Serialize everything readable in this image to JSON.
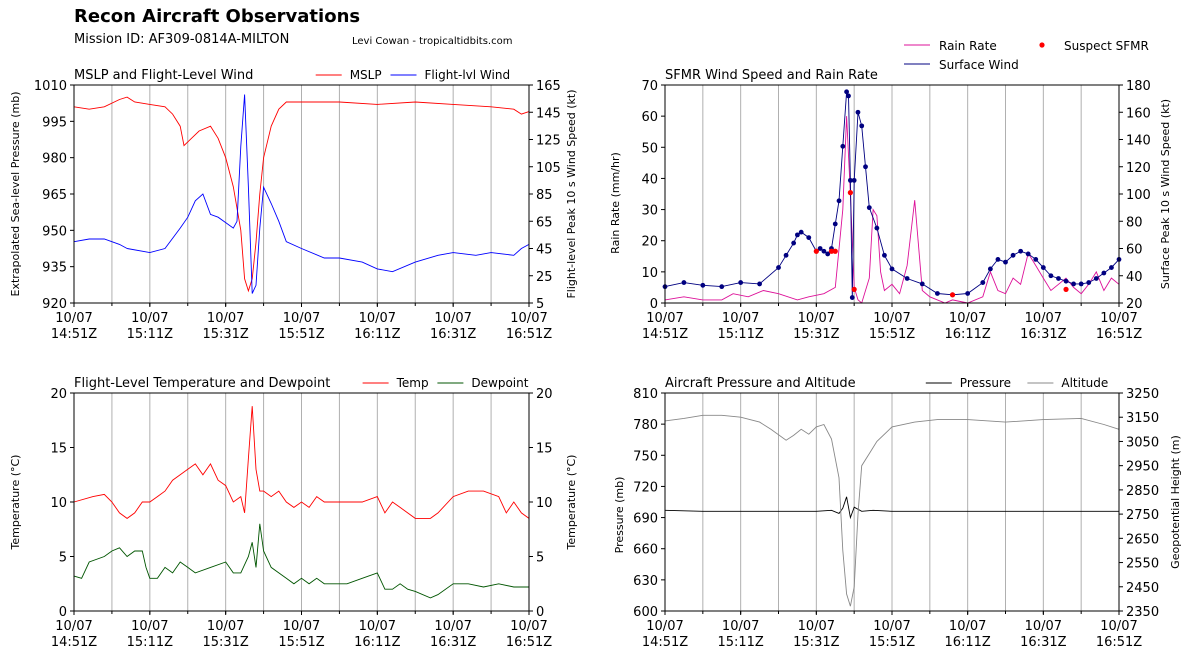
{
  "header": {
    "title": "Recon Aircraft Observations",
    "mission": "Mission ID: AF309-0814A-MILTON",
    "credit": "Levi Cowan - tropicaltidbits.com"
  },
  "x_axis": {
    "ticks": [
      "10/07 14:51Z",
      "10/07 15:11Z",
      "10/07 15:31Z",
      "10/07 15:51Z",
      "10/07 16:11Z",
      "10/07 16:31Z",
      "10/07 16:51Z"
    ],
    "range_minutes": [
      0,
      120
    ]
  },
  "chart_data": [
    {
      "type": "line",
      "title": "MSLP and Flight-Level Wind",
      "ylabel": "Extrapolated Sea-level Pressure (mb)",
      "ylim": [
        920,
        1010
      ],
      "yticks": [
        "920",
        "935",
        "950",
        "965",
        "980",
        "995",
        "1010"
      ],
      "y2label": "Flight-level Peak 10 s Wind Speed (kt)",
      "y2lim": [
        5,
        165
      ],
      "y2ticks": [
        "5",
        "25",
        "45",
        "65",
        "85",
        "105",
        "125",
        "145",
        "165"
      ],
      "legend": "top-right",
      "series": [
        {
          "name": "MSLP",
          "color": "#ff0000",
          "axis": "left",
          "x": [
            0,
            4,
            8,
            12,
            14,
            16,
            20,
            24,
            26,
            28,
            29,
            31,
            33,
            36,
            38,
            40,
            42,
            44,
            45,
            46,
            47,
            48,
            49,
            50,
            52,
            54,
            56,
            60,
            70,
            80,
            90,
            100,
            110,
            116,
            118,
            120
          ],
          "y": [
            1001,
            1000,
            1001,
            1004,
            1005,
            1003,
            1002,
            1001,
            998,
            993,
            985,
            988,
            991,
            993,
            988,
            980,
            968,
            950,
            930,
            925,
            930,
            945,
            965,
            980,
            993,
            1000,
            1003,
            1003,
            1003,
            1002,
            1003,
            1002,
            1001,
            1000,
            998,
            999
          ]
        },
        {
          "name": "Flight-lvl Wind",
          "color": "#0000ff",
          "axis": "right",
          "x": [
            0,
            4,
            8,
            12,
            14,
            20,
            24,
            28,
            30,
            32,
            34,
            36,
            38,
            40,
            42,
            43,
            44,
            45,
            46,
            47,
            48,
            49,
            50,
            52,
            54,
            56,
            60,
            66,
            70,
            76,
            80,
            84,
            90,
            96,
            100,
            106,
            110,
            116,
            118,
            120
          ],
          "y": [
            50,
            52,
            52,
            48,
            45,
            42,
            45,
            60,
            68,
            80,
            85,
            70,
            68,
            64,
            60,
            65,
            120,
            158,
            90,
            12,
            18,
            60,
            90,
            78,
            65,
            50,
            45,
            38,
            38,
            35,
            30,
            28,
            35,
            40,
            42,
            40,
            42,
            40,
            45,
            48
          ]
        }
      ]
    },
    {
      "type": "line",
      "title": "SFMR Wind Speed and Rain Rate",
      "ylabel": "Rain Rate (mm/hr)",
      "ylim": [
        0,
        70
      ],
      "yticks": [
        "0",
        "10",
        "20",
        "30",
        "40",
        "50",
        "60",
        "70"
      ],
      "y2label": "Surface Peak 10 s Wind Speed (kt)",
      "y2lim": [
        20,
        180
      ],
      "y2ticks": [
        "20",
        "40",
        "60",
        "80",
        "100",
        "120",
        "140",
        "160",
        "180"
      ],
      "legend": "above-right",
      "series": [
        {
          "name": "Rain Rate",
          "color": "#dd1199",
          "axis": "left",
          "x": [
            0,
            5,
            10,
            15,
            18,
            22,
            26,
            30,
            35,
            38,
            42,
            45,
            47,
            48,
            49,
            50,
            51,
            52,
            54,
            55,
            56,
            57,
            58,
            60,
            62,
            64,
            66,
            68,
            70,
            72,
            74,
            76,
            80,
            84,
            86,
            88,
            90,
            92,
            94,
            96,
            98,
            100,
            102,
            104,
            106,
            108,
            110,
            112,
            114,
            116,
            118,
            120
          ],
          "y": [
            1,
            2,
            1,
            1,
            3,
            2,
            4,
            3,
            1,
            2,
            3,
            5,
            30,
            60,
            35,
            5,
            1,
            0,
            8,
            30,
            28,
            10,
            4,
            6,
            3,
            12,
            33,
            4,
            2,
            1,
            0,
            1,
            0,
            2,
            10,
            4,
            3,
            8,
            6,
            16,
            12,
            8,
            4,
            6,
            8,
            5,
            3,
            6,
            10,
            4,
            8,
            6
          ]
        },
        {
          "name": "Surface Wind",
          "color": "#000080",
          "axis": "right",
          "x": [
            0,
            5,
            10,
            15,
            20,
            25,
            30,
            32,
            34,
            35,
            36,
            38,
            40,
            41,
            42,
            43,
            44,
            45,
            46,
            47,
            48,
            48.5,
            49,
            49.5,
            50,
            51,
            52,
            53,
            54,
            56,
            58,
            60,
            64,
            68,
            72,
            76,
            80,
            84,
            86,
            88,
            90,
            92,
            94,
            96,
            98,
            100,
            102,
            104,
            106,
            108,
            110,
            112,
            114,
            116,
            118,
            120
          ],
          "y": [
            32,
            35,
            33,
            32,
            35,
            34,
            46,
            55,
            64,
            70,
            72,
            68,
            58,
            60,
            58,
            56,
            60,
            78,
            95,
            135,
            175,
            172,
            110,
            24,
            110,
            160,
            150,
            120,
            90,
            75,
            55,
            45,
            38,
            34,
            27,
            26,
            27,
            35,
            45,
            52,
            50,
            55,
            58,
            56,
            52,
            46,
            40,
            38,
            36,
            34,
            34,
            35,
            38,
            42,
            46,
            52
          ]
        },
        {
          "name": "Suspect SFMR",
          "color": "#ff0000",
          "axis": "right",
          "marker": "dot",
          "x": [
            40,
            44,
            45,
            49,
            50,
            76,
            106
          ],
          "y": [
            58,
            58,
            58,
            101,
            30,
            26,
            30
          ]
        }
      ]
    },
    {
      "type": "line",
      "title": "Flight-Level Temperature and Dewpoint",
      "ylabel": "Temperature ($^\\circ C$)",
      "ylim": [
        0,
        20
      ],
      "yticks": [
        "0",
        "5",
        "10",
        "15",
        "20"
      ],
      "y2label": "Temperature ($^\\circ C$)",
      "y2lim": [
        0,
        20
      ],
      "y2ticks": [
        "0",
        "5",
        "10",
        "15",
        "20"
      ],
      "legend": "top-right",
      "series": [
        {
          "name": "Temp",
          "color": "#ff0000",
          "axis": "left",
          "x": [
            0,
            5,
            8,
            10,
            12,
            14,
            16,
            18,
            20,
            22,
            24,
            26,
            28,
            30,
            32,
            34,
            36,
            38,
            40,
            42,
            44,
            45,
            46,
            47,
            48,
            49,
            50,
            52,
            54,
            56,
            58,
            60,
            62,
            64,
            66,
            70,
            76,
            80,
            82,
            84,
            86,
            90,
            94,
            96,
            100,
            104,
            108,
            112,
            114,
            116,
            118,
            120
          ],
          "y": [
            10,
            10.5,
            10.7,
            10,
            9,
            8.5,
            9,
            10,
            10,
            10.5,
            11,
            12,
            12.5,
            13,
            13.5,
            12.5,
            13.5,
            12,
            11.5,
            10,
            10.5,
            9,
            14,
            18.8,
            13,
            11,
            11,
            10.5,
            11,
            10,
            9.5,
            10,
            9.5,
            10.5,
            10,
            10,
            10,
            10.5,
            9,
            10,
            9.5,
            8.5,
            8.5,
            9,
            10.5,
            11,
            11,
            10.5,
            9,
            10,
            9,
            8.5
          ]
        },
        {
          "name": "Dewpoint",
          "color": "#005500",
          "axis": "left",
          "x": [
            0,
            2,
            4,
            8,
            10,
            12,
            14,
            16,
            18,
            19,
            20,
            22,
            24,
            26,
            28,
            30,
            32,
            36,
            40,
            42,
            44,
            46,
            47,
            48,
            49,
            50,
            52,
            54,
            56,
            58,
            60,
            62,
            64,
            66,
            68,
            72,
            76,
            80,
            82,
            84,
            86,
            88,
            90,
            94,
            96,
            100,
            104,
            108,
            112,
            116,
            120
          ],
          "y": [
            3.2,
            3,
            4.5,
            5,
            5.5,
            5.8,
            5,
            5.5,
            5.5,
            4,
            3,
            3,
            4,
            3.5,
            4.5,
            4,
            3.5,
            4,
            4.5,
            3.5,
            3.5,
            5,
            6.3,
            4,
            8,
            5.5,
            4,
            3.5,
            3,
            2.5,
            3,
            2.5,
            3,
            2.5,
            2.5,
            2.5,
            3,
            3.5,
            2,
            2,
            2.5,
            2,
            1.8,
            1.2,
            1.5,
            2.5,
            2.5,
            2.2,
            2.5,
            2.2,
            2.2
          ]
        }
      ]
    },
    {
      "type": "line",
      "title": "Aircraft Pressure and Altitude",
      "ylabel": "Pressure (mb)",
      "ylim": [
        600,
        810
      ],
      "yticks": [
        "600",
        "630",
        "660",
        "690",
        "720",
        "750",
        "780",
        "810"
      ],
      "y2label": "Geopotential Height (m)",
      "y2lim": [
        2350,
        3250
      ],
      "y2ticks": [
        "2350",
        "2450",
        "2550",
        "2650",
        "2750",
        "2850",
        "2950",
        "3050",
        "3150",
        "3250"
      ],
      "legend": "top-right",
      "series": [
        {
          "name": "Pressure",
          "color": "#000000",
          "axis": "left",
          "x": [
            0,
            10,
            20,
            30,
            40,
            44,
            46,
            47,
            48,
            49,
            50,
            52,
            55,
            60,
            70,
            80,
            90,
            100,
            110,
            120
          ],
          "y": [
            697,
            696,
            696,
            696,
            696,
            697,
            694,
            699,
            710,
            690,
            700,
            696,
            697,
            696,
            696,
            696,
            696,
            696,
            696,
            696
          ]
        },
        {
          "name": "Altitude",
          "color": "#888888",
          "axis": "right",
          "x": [
            0,
            5,
            10,
            15,
            20,
            25,
            28,
            32,
            34,
            36,
            38,
            40,
            42,
            44,
            46,
            47,
            48,
            49,
            50,
            51,
            52,
            54,
            56,
            60,
            66,
            72,
            80,
            90,
            100,
            110,
            116,
            120
          ],
          "y": [
            3135,
            3145,
            3158,
            3158,
            3150,
            3130,
            3100,
            3055,
            3075,
            3100,
            3080,
            3110,
            3120,
            3060,
            2900,
            2600,
            2420,
            2370,
            2450,
            2750,
            2950,
            3000,
            3050,
            3110,
            3130,
            3140,
            3140,
            3130,
            3140,
            3145,
            3120,
            3100
          ]
        }
      ]
    }
  ]
}
